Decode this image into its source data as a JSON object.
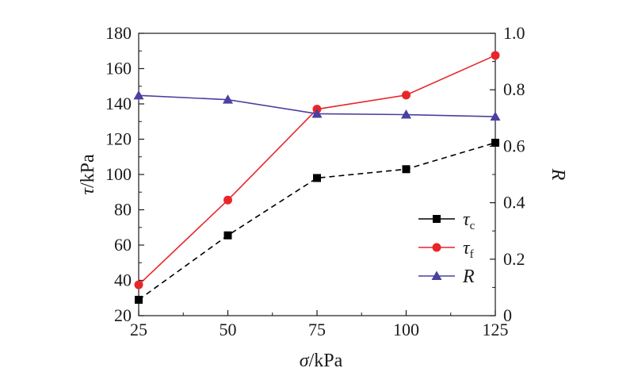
{
  "chart_data": {
    "type": "line",
    "x": [
      25,
      50,
      75,
      100,
      125
    ],
    "xlim": [
      25,
      125
    ],
    "ylim_left": [
      20,
      180
    ],
    "ylim_right": [
      0,
      1.0
    ],
    "x_ticks": [
      "25",
      "50",
      "75",
      "100",
      "125"
    ],
    "y_left_ticks": [
      "20",
      "40",
      "60",
      "80",
      "100",
      "120",
      "140",
      "160",
      "180"
    ],
    "y_right_ticks": [
      "0",
      "0.2",
      "0.4",
      "0.6",
      "0.8",
      "1.0"
    ],
    "xlabel": {
      "symbol": "σ",
      "unit": "/kPa"
    },
    "ylabel_left": {
      "symbol": "τ",
      "unit": "/kPa"
    },
    "ylabel_right": {
      "symbol": "R"
    },
    "grid": false,
    "legend_position": "lower-right",
    "series": [
      {
        "name": "τc",
        "label_main": "τ",
        "label_sub": "c",
        "axis": "left",
        "values": [
          29,
          65.5,
          98,
          103,
          118
        ],
        "color": "#000000",
        "marker": "square",
        "dash": true
      },
      {
        "name": "τf",
        "label_main": "τ",
        "label_sub": "f",
        "axis": "left",
        "values": [
          37.5,
          85.5,
          137,
          145,
          167.5
        ],
        "color": "#e8262a",
        "marker": "circle",
        "dash": false
      },
      {
        "name": "R",
        "label_main": "R",
        "label_sub": "",
        "axis": "right",
        "values": [
          0.78,
          0.765,
          0.715,
          0.712,
          0.705
        ],
        "color": "#4a40a0",
        "marker": "triangle",
        "dash": false
      }
    ]
  }
}
